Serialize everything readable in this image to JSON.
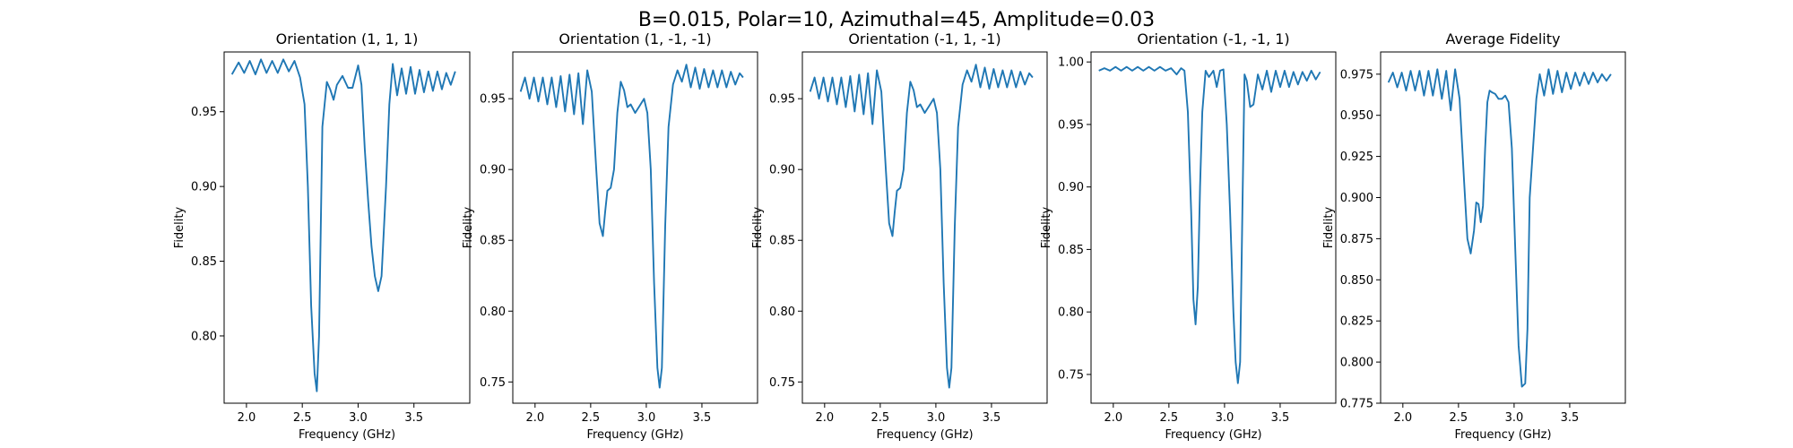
{
  "suptitle": "B=0.015, Polar=10, Azimuthal=45, Amplitude=0.03",
  "chart_data": [
    {
      "type": "line",
      "title": "Orientation (1, 1, 1)",
      "xlabel": "Frequency (GHz)",
      "ylabel": "Fidelity",
      "xlim": [
        1.8,
        4.0
      ],
      "ylim": [
        0.755,
        0.99
      ],
      "xticks": [
        2.0,
        2.5,
        3.0,
        3.5
      ],
      "yticks": [
        0.8,
        0.85,
        0.9,
        0.95
      ],
      "xtick_labels": [
        "2.0",
        "2.5",
        "3.0",
        "3.5"
      ],
      "ytick_labels": [
        "0.80",
        "0.85",
        "0.90",
        "0.95"
      ],
      "color": "#1f77b4",
      "x": [
        1.87,
        1.93,
        1.98,
        2.03,
        2.08,
        2.13,
        2.18,
        2.23,
        2.28,
        2.33,
        2.38,
        2.43,
        2.48,
        2.52,
        2.55,
        2.58,
        2.61,
        2.63,
        2.65,
        2.68,
        2.72,
        2.75,
        2.78,
        2.81,
        2.86,
        2.91,
        2.95,
        3.0,
        3.03,
        3.06,
        3.09,
        3.12,
        3.15,
        3.18,
        3.21,
        3.25,
        3.28,
        3.31,
        3.35,
        3.39,
        3.43,
        3.47,
        3.51,
        3.55,
        3.59,
        3.63,
        3.67,
        3.71,
        3.75,
        3.79,
        3.83,
        3.87
      ],
      "values": [
        0.975,
        0.983,
        0.976,
        0.984,
        0.975,
        0.985,
        0.976,
        0.984,
        0.976,
        0.985,
        0.977,
        0.984,
        0.973,
        0.955,
        0.9,
        0.82,
        0.775,
        0.763,
        0.8,
        0.94,
        0.97,
        0.965,
        0.958,
        0.968,
        0.974,
        0.966,
        0.966,
        0.981,
        0.968,
        0.925,
        0.89,
        0.86,
        0.84,
        0.83,
        0.84,
        0.9,
        0.955,
        0.982,
        0.961,
        0.979,
        0.962,
        0.98,
        0.962,
        0.978,
        0.963,
        0.977,
        0.964,
        0.977,
        0.965,
        0.976,
        0.968,
        0.977
      ]
    },
    {
      "type": "line",
      "title": "Orientation (1, -1, -1)",
      "xlabel": "Frequency (GHz)",
      "ylabel": "Fidelity",
      "xlim": [
        1.8,
        4.0
      ],
      "ylim": [
        0.735,
        0.983
      ],
      "xticks": [
        2.0,
        2.5,
        3.0,
        3.5
      ],
      "yticks": [
        0.75,
        0.8,
        0.85,
        0.9,
        0.95
      ],
      "xtick_labels": [
        "2.0",
        "2.5",
        "3.0",
        "3.5"
      ],
      "ytick_labels": [
        "0.75",
        "0.80",
        "0.85",
        "0.90",
        "0.95"
      ],
      "color": "#1f77b4",
      "x": [
        1.87,
        1.91,
        1.95,
        1.99,
        2.03,
        2.07,
        2.11,
        2.15,
        2.19,
        2.23,
        2.27,
        2.31,
        2.35,
        2.39,
        2.43,
        2.47,
        2.51,
        2.55,
        2.58,
        2.61,
        2.63,
        2.65,
        2.68,
        2.71,
        2.74,
        2.77,
        2.8,
        2.83,
        2.86,
        2.9,
        2.94,
        2.98,
        3.01,
        3.04,
        3.07,
        3.1,
        3.12,
        3.14,
        3.17,
        3.2,
        3.24,
        3.28,
        3.32,
        3.36,
        3.4,
        3.44,
        3.48,
        3.52,
        3.56,
        3.6,
        3.64,
        3.68,
        3.72,
        3.76,
        3.8,
        3.84,
        3.87
      ],
      "values": [
        0.955,
        0.965,
        0.95,
        0.965,
        0.948,
        0.965,
        0.946,
        0.965,
        0.944,
        0.966,
        0.941,
        0.967,
        0.939,
        0.968,
        0.932,
        0.97,
        0.955,
        0.9,
        0.862,
        0.853,
        0.87,
        0.885,
        0.887,
        0.9,
        0.94,
        0.962,
        0.956,
        0.944,
        0.946,
        0.94,
        0.945,
        0.95,
        0.94,
        0.9,
        0.82,
        0.76,
        0.746,
        0.76,
        0.86,
        0.93,
        0.96,
        0.97,
        0.962,
        0.974,
        0.958,
        0.972,
        0.957,
        0.971,
        0.958,
        0.97,
        0.958,
        0.97,
        0.958,
        0.969,
        0.96,
        0.968,
        0.965
      ]
    },
    {
      "type": "line",
      "title": "Orientation (-1, 1, -1)",
      "xlabel": "Frequency (GHz)",
      "ylabel": "Fidelity",
      "xlim": [
        1.8,
        4.0
      ],
      "ylim": [
        0.735,
        0.983
      ],
      "xticks": [
        2.0,
        2.5,
        3.0,
        3.5
      ],
      "yticks": [
        0.75,
        0.8,
        0.85,
        0.9,
        0.95
      ],
      "xtick_labels": [
        "2.0",
        "2.5",
        "3.0",
        "3.5"
      ],
      "ytick_labels": [
        "0.75",
        "0.80",
        "0.85",
        "0.90",
        "0.95"
      ],
      "color": "#1f77b4",
      "x": [
        1.87,
        1.91,
        1.95,
        1.99,
        2.03,
        2.07,
        2.11,
        2.15,
        2.19,
        2.23,
        2.27,
        2.31,
        2.35,
        2.39,
        2.43,
        2.47,
        2.51,
        2.55,
        2.58,
        2.61,
        2.63,
        2.65,
        2.68,
        2.71,
        2.74,
        2.77,
        2.8,
        2.83,
        2.86,
        2.9,
        2.94,
        2.98,
        3.01,
        3.04,
        3.07,
        3.1,
        3.12,
        3.14,
        3.17,
        3.2,
        3.24,
        3.28,
        3.32,
        3.36,
        3.4,
        3.44,
        3.48,
        3.52,
        3.56,
        3.6,
        3.64,
        3.68,
        3.72,
        3.76,
        3.8,
        3.84,
        3.87
      ],
      "values": [
        0.955,
        0.965,
        0.95,
        0.965,
        0.948,
        0.965,
        0.946,
        0.965,
        0.944,
        0.966,
        0.941,
        0.967,
        0.939,
        0.968,
        0.932,
        0.97,
        0.955,
        0.9,
        0.862,
        0.853,
        0.87,
        0.885,
        0.887,
        0.9,
        0.94,
        0.962,
        0.956,
        0.944,
        0.946,
        0.94,
        0.945,
        0.95,
        0.94,
        0.9,
        0.82,
        0.76,
        0.746,
        0.76,
        0.86,
        0.93,
        0.96,
        0.97,
        0.962,
        0.974,
        0.958,
        0.972,
        0.957,
        0.971,
        0.958,
        0.97,
        0.958,
        0.97,
        0.958,
        0.969,
        0.96,
        0.968,
        0.965
      ]
    },
    {
      "type": "line",
      "title": "Orientation (-1, -1, 1)",
      "xlabel": "Frequency (GHz)",
      "ylabel": "Fidelity",
      "xlim": [
        1.8,
        4.0
      ],
      "ylim": [
        0.727,
        1.008
      ],
      "xticks": [
        2.0,
        2.5,
        3.0,
        3.5
      ],
      "yticks": [
        0.75,
        0.8,
        0.85,
        0.9,
        0.95,
        1.0
      ],
      "xtick_labels": [
        "2.0",
        "2.5",
        "3.0",
        "3.5"
      ],
      "ytick_labels": [
        "0.75",
        "0.80",
        "0.85",
        "0.90",
        "0.95",
        "1.00"
      ],
      "color": "#1f77b4",
      "x": [
        1.87,
        1.92,
        1.97,
        2.02,
        2.07,
        2.12,
        2.17,
        2.22,
        2.27,
        2.32,
        2.37,
        2.42,
        2.47,
        2.52,
        2.57,
        2.61,
        2.64,
        2.67,
        2.7,
        2.72,
        2.74,
        2.76,
        2.78,
        2.8,
        2.83,
        2.86,
        2.9,
        2.93,
        2.96,
        2.99,
        3.02,
        3.05,
        3.08,
        3.1,
        3.12,
        3.14,
        3.16,
        3.18,
        3.2,
        3.23,
        3.26,
        3.3,
        3.34,
        3.38,
        3.42,
        3.46,
        3.5,
        3.54,
        3.58,
        3.62,
        3.66,
        3.7,
        3.74,
        3.78,
        3.82,
        3.86
      ],
      "values": [
        0.993,
        0.995,
        0.993,
        0.996,
        0.993,
        0.996,
        0.993,
        0.996,
        0.993,
        0.996,
        0.993,
        0.996,
        0.993,
        0.995,
        0.99,
        0.995,
        0.993,
        0.96,
        0.88,
        0.81,
        0.79,
        0.82,
        0.9,
        0.96,
        0.993,
        0.988,
        0.993,
        0.98,
        0.993,
        0.994,
        0.95,
        0.88,
        0.8,
        0.76,
        0.743,
        0.76,
        0.88,
        0.99,
        0.985,
        0.964,
        0.966,
        0.99,
        0.978,
        0.993,
        0.976,
        0.993,
        0.98,
        0.993,
        0.98,
        0.992,
        0.982,
        0.992,
        0.985,
        0.993,
        0.986,
        0.992
      ]
    },
    {
      "type": "line",
      "title": "Average Fidelity",
      "xlabel": "Frequency (GHz)",
      "ylabel": "Fidelity",
      "xlim": [
        1.8,
        4.0
      ],
      "ylim": [
        0.775,
        0.9885
      ],
      "xticks": [
        2.0,
        2.5,
        3.0,
        3.5
      ],
      "yticks": [
        0.775,
        0.8,
        0.825,
        0.85,
        0.875,
        0.9,
        0.925,
        0.95,
        0.975
      ],
      "xtick_labels": [
        "2.0",
        "2.5",
        "3.0",
        "3.5"
      ],
      "ytick_labels": [
        "0.775",
        "0.800",
        "0.825",
        "0.850",
        "0.875",
        "0.900",
        "0.925",
        "0.950",
        "0.975"
      ],
      "color": "#1f77b4",
      "x": [
        1.87,
        1.91,
        1.95,
        1.99,
        2.03,
        2.07,
        2.11,
        2.15,
        2.19,
        2.23,
        2.27,
        2.31,
        2.35,
        2.39,
        2.43,
        2.47,
        2.51,
        2.55,
        2.58,
        2.61,
        2.64,
        2.66,
        2.68,
        2.7,
        2.72,
        2.74,
        2.76,
        2.78,
        2.8,
        2.83,
        2.86,
        2.89,
        2.92,
        2.95,
        2.98,
        3.01,
        3.04,
        3.07,
        3.1,
        3.12,
        3.14,
        3.17,
        3.2,
        3.23,
        3.27,
        3.31,
        3.35,
        3.39,
        3.43,
        3.47,
        3.51,
        3.55,
        3.59,
        3.63,
        3.67,
        3.71,
        3.75,
        3.79,
        3.83,
        3.87
      ],
      "values": [
        0.97,
        0.976,
        0.967,
        0.976,
        0.965,
        0.977,
        0.965,
        0.977,
        0.962,
        0.977,
        0.962,
        0.978,
        0.96,
        0.977,
        0.953,
        0.978,
        0.96,
        0.91,
        0.875,
        0.866,
        0.88,
        0.897,
        0.896,
        0.885,
        0.895,
        0.93,
        0.958,
        0.965,
        0.964,
        0.963,
        0.96,
        0.96,
        0.962,
        0.958,
        0.93,
        0.87,
        0.81,
        0.785,
        0.787,
        0.82,
        0.9,
        0.93,
        0.96,
        0.975,
        0.962,
        0.978,
        0.963,
        0.977,
        0.964,
        0.976,
        0.966,
        0.976,
        0.968,
        0.976,
        0.969,
        0.976,
        0.97,
        0.975,
        0.971,
        0.975
      ]
    }
  ]
}
